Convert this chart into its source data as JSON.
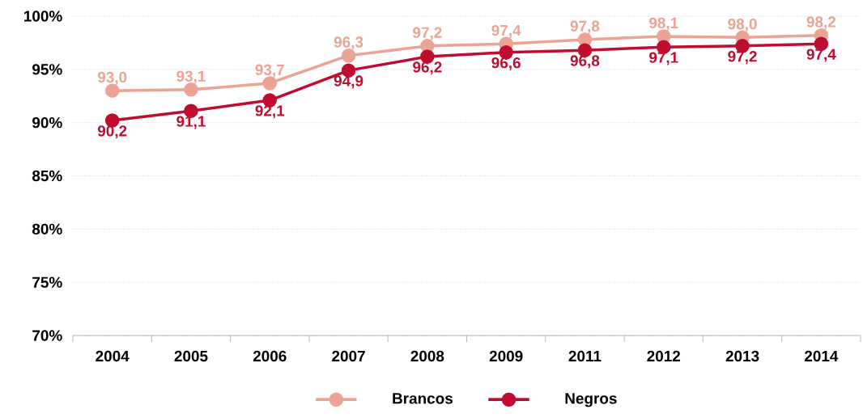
{
  "chart_data": {
    "type": "line",
    "categories": [
      "2004",
      "2005",
      "2006",
      "2007",
      "2008",
      "2009",
      "2011",
      "2012",
      "2013",
      "2014"
    ],
    "series": [
      {
        "name": "Brancos",
        "color": "#eba393",
        "values": [
          93.0,
          93.1,
          93.7,
          96.3,
          97.2,
          97.4,
          97.8,
          98.1,
          98.0,
          98.2
        ],
        "value_labels": [
          "93,0",
          "93,1",
          "93,7",
          "96,3",
          "97,2",
          "97,4",
          "97,8",
          "98,1",
          "98,0",
          "98,2"
        ]
      },
      {
        "name": "Negros",
        "color": "#c00d2f",
        "values": [
          90.2,
          91.1,
          92.1,
          94.9,
          96.2,
          96.6,
          96.8,
          97.1,
          97.2,
          97.4
        ],
        "value_labels": [
          "90,2",
          "91,1",
          "92,1",
          "94,9",
          "96,2",
          "96,6",
          "96,8",
          "97,1",
          "97,2",
          "97,4"
        ]
      }
    ],
    "ylim": [
      70,
      100
    ],
    "yticks": [
      {
        "value": 70,
        "label": "70%"
      },
      {
        "value": 75,
        "label": "75%"
      },
      {
        "value": 80,
        "label": "80%"
      },
      {
        "value": 85,
        "label": "85%"
      },
      {
        "value": 90,
        "label": "90%"
      },
      {
        "value": 95,
        "label": "95%"
      },
      {
        "value": 100,
        "label": "100%"
      }
    ],
    "grid": "y",
    "legend": "bottom",
    "marker": "circle",
    "line_style": "solid"
  }
}
